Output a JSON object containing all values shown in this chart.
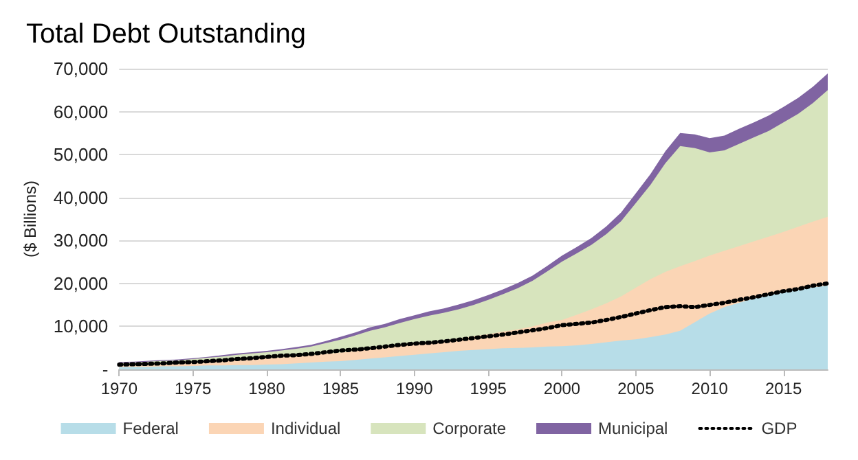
{
  "chart_data": {
    "type": "area",
    "title": "Total Debt Outstanding",
    "ylabel": "($ Billions)",
    "stacked": true,
    "grid": "y",
    "legend": "bottom",
    "marker": "none",
    "x": [
      1970,
      1971,
      1972,
      1973,
      1974,
      1975,
      1976,
      1977,
      1978,
      1979,
      1980,
      1981,
      1982,
      1983,
      1984,
      1985,
      1986,
      1987,
      1988,
      1989,
      1990,
      1991,
      1992,
      1993,
      1994,
      1995,
      1996,
      1997,
      1998,
      1999,
      2000,
      2001,
      2002,
      2003,
      2004,
      2005,
      2006,
      2007,
      2008,
      2009,
      2010,
      2011,
      2012,
      2013,
      2014,
      2015,
      2016,
      2017,
      2018
    ],
    "xlim": [
      1970,
      2018
    ],
    "xticks": [
      1970,
      1975,
      1980,
      1985,
      1990,
      1995,
      2000,
      2005,
      2010,
      2015
    ],
    "ylim": [
      0,
      70000
    ],
    "yticks": [
      {
        "value": 0,
        "label": "-"
      },
      {
        "value": 10000,
        "label": "10,000"
      },
      {
        "value": 20000,
        "label": "20,000"
      },
      {
        "value": 30000,
        "label": "30,000"
      },
      {
        "value": 40000,
        "label": "40,000"
      },
      {
        "value": 50000,
        "label": "50,000"
      },
      {
        "value": 60000,
        "label": "60,000"
      },
      {
        "value": 70000,
        "label": "70,000"
      }
    ],
    "series": [
      {
        "name": "Federal",
        "color": "#b7dde8",
        "values": [
          500,
          600,
          600,
          700,
          700,
          800,
          900,
          900,
          1000,
          1000,
          1100,
          1200,
          1400,
          1600,
          1800,
          1900,
          2200,
          2500,
          2800,
          3100,
          3400,
          3700,
          4000,
          4300,
          4500,
          4700,
          4900,
          5000,
          5100,
          5300,
          5400,
          5600,
          5900,
          6300,
          6700,
          7000,
          7500,
          8100,
          9000,
          11000,
          13000,
          14500,
          15500,
          16500,
          17300,
          18000,
          18600,
          19100,
          19500
        ]
      },
      {
        "name": "Individual",
        "color": "#fbd5b5",
        "values": [
          400,
          400,
          500,
          600,
          600,
          700,
          800,
          1000,
          1200,
          1400,
          1500,
          1600,
          1600,
          1700,
          1800,
          2000,
          2100,
          2200,
          2300,
          2500,
          2600,
          2700,
          2800,
          2900,
          3200,
          3500,
          3900,
          4300,
          4900,
          5600,
          6100,
          7100,
          8100,
          9100,
          10300,
          12000,
          13500,
          14600,
          15000,
          14200,
          13500,
          13100,
          13200,
          13300,
          13600,
          14000,
          14600,
          15300,
          16000
        ]
      },
      {
        "name": "Corporate",
        "color": "#d7e4bd",
        "values": [
          600,
          600,
          700,
          700,
          800,
          900,
          1000,
          1100,
          1200,
          1300,
          1400,
          1600,
          1800,
          2000,
          2500,
          3000,
          3600,
          4300,
          4700,
          5200,
          5700,
          6100,
          6400,
          6800,
          7300,
          8000,
          8700,
          9600,
          10600,
          11900,
          13600,
          14300,
          15000,
          16100,
          17500,
          19700,
          22000,
          25300,
          28000,
          26300,
          24000,
          23400,
          23800,
          24200,
          24600,
          25500,
          26300,
          27600,
          29500
        ]
      },
      {
        "name": "Municipal",
        "color": "#8064a2",
        "values": [
          200,
          200,
          200,
          200,
          200,
          200,
          200,
          300,
          300,
          300,
          300,
          300,
          400,
          400,
          500,
          700,
          700,
          800,
          800,
          900,
          900,
          1000,
          1000,
          1100,
          1100,
          1100,
          1100,
          1200,
          1200,
          1300,
          1400,
          1500,
          1600,
          1800,
          2000,
          2300,
          2500,
          2800,
          3000,
          3200,
          3300,
          3400,
          3500,
          3500,
          3600,
          3600,
          3700,
          3800,
          3900
        ]
      },
      {
        "name": "GDP",
        "type": "line",
        "color": "#000000",
        "line_style": "dotted",
        "values": [
          1100,
          1200,
          1300,
          1400,
          1600,
          1700,
          1900,
          2100,
          2400,
          2600,
          2900,
          3200,
          3300,
          3600,
          4000,
          4400,
          4600,
          4900,
          5300,
          5700,
          6000,
          6200,
          6500,
          6900,
          7300,
          7700,
          8100,
          8600,
          9100,
          9600,
          10300,
          10600,
          10900,
          11500,
          12200,
          13000,
          13800,
          14500,
          14700,
          14500,
          15000,
          15500,
          16200,
          16800,
          17500,
          18200,
          18700,
          19500,
          20000
        ]
      }
    ]
  }
}
